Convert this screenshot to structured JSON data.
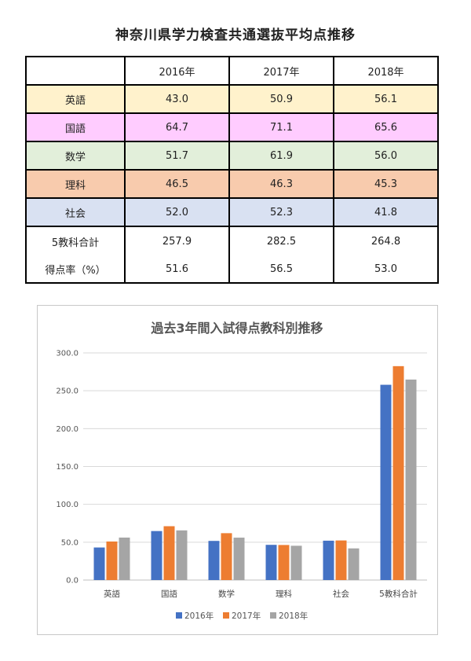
{
  "page_title": "神奈川県学力検査共通選抜平均点推移",
  "table": {
    "headers": [
      "",
      "2016年",
      "2017年",
      "2018年"
    ],
    "subjects": [
      {
        "label": "英語",
        "values": [
          "43.0",
          "50.9",
          "56.1"
        ],
        "color": "#fff2cc"
      },
      {
        "label": "国語",
        "values": [
          "64.7",
          "71.1",
          "65.6"
        ],
        "color": "#ffccff"
      },
      {
        "label": "数学",
        "values": [
          "51.7",
          "61.9",
          "56.0"
        ],
        "color": "#e2efda"
      },
      {
        "label": "理科",
        "values": [
          "46.5",
          "46.3",
          "45.3"
        ],
        "color": "#f8cbad"
      },
      {
        "label": "社会",
        "values": [
          "52.0",
          "52.3",
          "41.8"
        ],
        "color": "#d9e1f2"
      }
    ],
    "total": {
      "label": "5教科合計",
      "values": [
        "257.9",
        "282.5",
        "264.8"
      ]
    },
    "rate": {
      "label": "得点率（%）",
      "values": [
        "51.6",
        "56.5",
        "53.0"
      ]
    }
  },
  "chart_data": {
    "type": "bar",
    "title": "過去3年間入試得点教科別推移",
    "categories": [
      "英語",
      "国語",
      "数学",
      "理科",
      "社会",
      "5教科合計"
    ],
    "series": [
      {
        "name": "2016年",
        "values": [
          43.0,
          64.7,
          51.7,
          46.5,
          52.0,
          257.9
        ],
        "color": "#4472c4"
      },
      {
        "name": "2017年",
        "values": [
          50.9,
          71.1,
          61.9,
          46.3,
          52.3,
          282.5
        ],
        "color": "#ed7d31"
      },
      {
        "name": "2018年",
        "values": [
          56.1,
          65.6,
          56.0,
          45.3,
          41.8,
          264.8
        ],
        "color": "#a5a5a5"
      }
    ],
    "ylim": [
      0,
      300
    ],
    "yticks": [
      "0.0",
      "50.0",
      "100.0",
      "150.0",
      "200.0",
      "250.0",
      "300.0"
    ],
    "grid": true,
    "legend_position": "bottom"
  }
}
